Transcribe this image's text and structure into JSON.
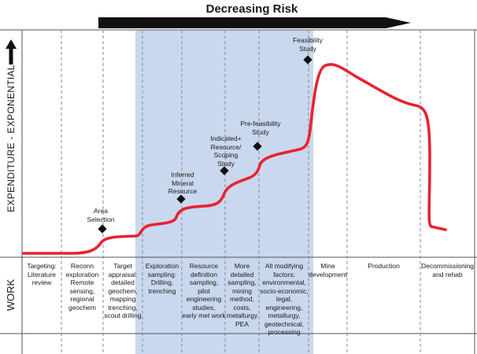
{
  "header": {
    "title": "Decreasing Risk"
  },
  "axis": {
    "y_label": "EXPENDITURE - EXPONENTIAL",
    "work_label": "WORK"
  },
  "colors": {
    "curve": "#e8232f",
    "highlight": "#c9d8ef",
    "arrow": "#111111",
    "grid": "#8a8a8a"
  },
  "milestones": [
    {
      "label": "Area\nSelection"
    },
    {
      "label": "Inferred\nMineral\nResource"
    },
    {
      "label": "Indicated+\nResource/\nScoping\nStudy"
    },
    {
      "label": "Pre-feasibility\nStudy"
    },
    {
      "label": "Feasibility\nStudy"
    }
  ],
  "work_stages": [
    {
      "label": "Targeting:\nLiterature\nreview"
    },
    {
      "label": "Reconn\nexploration\nRemote\nsensing,\nregional\ngeochem"
    },
    {
      "label": "Target\nappraisal:\ndetailed\ngeochem,\nmapping\ntrenching,\nscout drilling"
    },
    {
      "label": "Exploration\nsampling:\nDrilling,\ntrenching"
    },
    {
      "label": "Resource\ndefinition\nsampling,\npilot\nengineering\nstudies,\nearly met work"
    },
    {
      "label": "More\ndetailed\nsampling,\nmining\nmethod,\ncosts,\nmetallurgy\nPEA"
    },
    {
      "label": "All modifying\nfactors:\nenvironmental,\nsocio-economic,\nlegal,\nengineering,\nmetallurgy,\ngeotechnical,\nprocessing"
    },
    {
      "label": "Mine\ndevelopment"
    },
    {
      "label": "Production"
    },
    {
      "label": "Decommissioning\nand rehab"
    }
  ]
}
